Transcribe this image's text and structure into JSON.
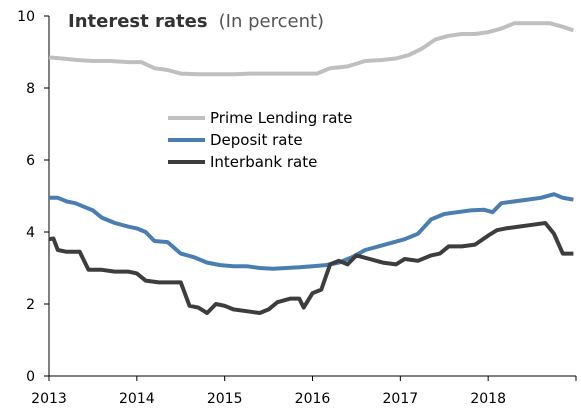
{
  "chart_data": {
    "type": "line",
    "title": "Interest rates",
    "subtitle": "(In percent)",
    "xlabel": "",
    "ylabel": "",
    "xlim": [
      2013,
      2019
    ],
    "ylim": [
      0,
      10
    ],
    "y_ticks": [
      "0",
      "2",
      "4",
      "6",
      "8",
      "10"
    ],
    "x_ticks": [
      "2013",
      "2014",
      "2015",
      "2016",
      "2017",
      "2018"
    ],
    "grid": false,
    "legend_position": "center-left",
    "series": [
      {
        "name": "Prime Lending rate",
        "color": "#bfbfbf",
        "points": [
          [
            2013.0,
            8.85
          ],
          [
            2013.15,
            8.82
          ],
          [
            2013.3,
            8.78
          ],
          [
            2013.5,
            8.75
          ],
          [
            2013.7,
            8.75
          ],
          [
            2013.9,
            8.72
          ],
          [
            2014.05,
            8.72
          ],
          [
            2014.2,
            8.55
          ],
          [
            2014.35,
            8.5
          ],
          [
            2014.5,
            8.4
          ],
          [
            2014.7,
            8.38
          ],
          [
            2014.9,
            8.38
          ],
          [
            2015.1,
            8.38
          ],
          [
            2015.3,
            8.4
          ],
          [
            2015.5,
            8.4
          ],
          [
            2015.7,
            8.4
          ],
          [
            2015.9,
            8.4
          ],
          [
            2016.05,
            8.4
          ],
          [
            2016.2,
            8.55
          ],
          [
            2016.4,
            8.6
          ],
          [
            2016.6,
            8.75
          ],
          [
            2016.8,
            8.78
          ],
          [
            2016.95,
            8.82
          ],
          [
            2017.1,
            8.92
          ],
          [
            2017.25,
            9.1
          ],
          [
            2017.4,
            9.35
          ],
          [
            2017.55,
            9.45
          ],
          [
            2017.7,
            9.5
          ],
          [
            2017.85,
            9.5
          ],
          [
            2018.0,
            9.55
          ],
          [
            2018.15,
            9.65
          ],
          [
            2018.3,
            9.8
          ],
          [
            2018.5,
            9.8
          ],
          [
            2018.7,
            9.8
          ],
          [
            2018.85,
            9.7
          ],
          [
            2018.97,
            9.6
          ]
        ]
      },
      {
        "name": "Deposit rate",
        "color": "#4a7eb0",
        "points": [
          [
            2013.0,
            4.95
          ],
          [
            2013.1,
            4.95
          ],
          [
            2013.2,
            4.85
          ],
          [
            2013.3,
            4.8
          ],
          [
            2013.4,
            4.7
          ],
          [
            2013.5,
            4.6
          ],
          [
            2013.6,
            4.4
          ],
          [
            2013.75,
            4.25
          ],
          [
            2013.9,
            4.15
          ],
          [
            2014.0,
            4.1
          ],
          [
            2014.1,
            4.0
          ],
          [
            2014.2,
            3.75
          ],
          [
            2014.35,
            3.72
          ],
          [
            2014.5,
            3.4
          ],
          [
            2014.65,
            3.3
          ],
          [
            2014.8,
            3.15
          ],
          [
            2014.95,
            3.08
          ],
          [
            2015.1,
            3.05
          ],
          [
            2015.25,
            3.05
          ],
          [
            2015.4,
            3.0
          ],
          [
            2015.55,
            2.98
          ],
          [
            2015.7,
            3.0
          ],
          [
            2015.85,
            3.02
          ],
          [
            2016.0,
            3.05
          ],
          [
            2016.15,
            3.08
          ],
          [
            2016.3,
            3.15
          ],
          [
            2016.45,
            3.3
          ],
          [
            2016.6,
            3.5
          ],
          [
            2016.75,
            3.6
          ],
          [
            2016.9,
            3.7
          ],
          [
            2017.05,
            3.8
          ],
          [
            2017.2,
            3.95
          ],
          [
            2017.35,
            4.35
          ],
          [
            2017.5,
            4.5
          ],
          [
            2017.65,
            4.55
          ],
          [
            2017.8,
            4.6
          ],
          [
            2017.95,
            4.62
          ],
          [
            2018.05,
            4.55
          ],
          [
            2018.15,
            4.8
          ],
          [
            2018.3,
            4.85
          ],
          [
            2018.45,
            4.9
          ],
          [
            2018.6,
            4.95
          ],
          [
            2018.75,
            5.05
          ],
          [
            2018.85,
            4.95
          ],
          [
            2018.97,
            4.9
          ]
        ]
      },
      {
        "name": "Interbank rate",
        "color": "#3d3d3d",
        "points": [
          [
            2013.0,
            3.8
          ],
          [
            2013.05,
            3.82
          ],
          [
            2013.1,
            3.5
          ],
          [
            2013.2,
            3.45
          ],
          [
            2013.35,
            3.45
          ],
          [
            2013.45,
            2.95
          ],
          [
            2013.6,
            2.95
          ],
          [
            2013.75,
            2.9
          ],
          [
            2013.9,
            2.9
          ],
          [
            2014.0,
            2.85
          ],
          [
            2014.1,
            2.65
          ],
          [
            2014.25,
            2.6
          ],
          [
            2014.35,
            2.6
          ],
          [
            2014.5,
            2.6
          ],
          [
            2014.6,
            1.95
          ],
          [
            2014.7,
            1.9
          ],
          [
            2014.8,
            1.75
          ],
          [
            2014.9,
            2.0
          ],
          [
            2015.0,
            1.95
          ],
          [
            2015.1,
            1.85
          ],
          [
            2015.25,
            1.8
          ],
          [
            2015.4,
            1.75
          ],
          [
            2015.5,
            1.85
          ],
          [
            2015.6,
            2.05
          ],
          [
            2015.75,
            2.15
          ],
          [
            2015.85,
            2.15
          ],
          [
            2015.9,
            1.9
          ],
          [
            2016.0,
            2.3
          ],
          [
            2016.1,
            2.4
          ],
          [
            2016.2,
            3.1
          ],
          [
            2016.3,
            3.2
          ],
          [
            2016.4,
            3.1
          ],
          [
            2016.5,
            3.35
          ],
          [
            2016.65,
            3.25
          ],
          [
            2016.8,
            3.15
          ],
          [
            2016.95,
            3.1
          ],
          [
            2017.05,
            3.25
          ],
          [
            2017.2,
            3.2
          ],
          [
            2017.35,
            3.35
          ],
          [
            2017.45,
            3.4
          ],
          [
            2017.55,
            3.6
          ],
          [
            2017.7,
            3.6
          ],
          [
            2017.85,
            3.65
          ],
          [
            2018.0,
            3.9
          ],
          [
            2018.1,
            4.05
          ],
          [
            2018.2,
            4.1
          ],
          [
            2018.35,
            4.15
          ],
          [
            2018.5,
            4.2
          ],
          [
            2018.65,
            4.25
          ],
          [
            2018.75,
            3.95
          ],
          [
            2018.85,
            3.4
          ],
          [
            2018.97,
            3.4
          ]
        ]
      }
    ]
  }
}
